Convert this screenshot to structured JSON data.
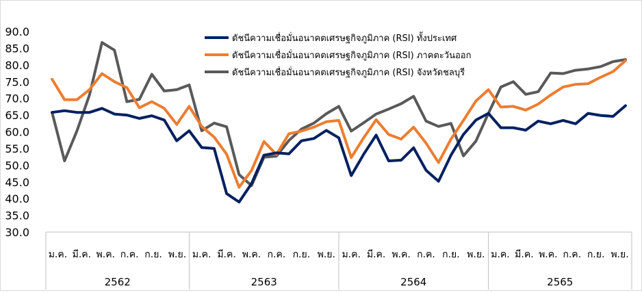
{
  "chart_data": {
    "type": "line",
    "title": "",
    "xlabel": "",
    "ylabel": "",
    "ylim": [
      30,
      90
    ],
    "yticks": [
      "30.0",
      "35.0",
      "40.0",
      "45.0",
      "50.0",
      "55.0",
      "60.0",
      "65.0",
      "70.0",
      "75.0",
      "80.0",
      "85.0",
      "90.0"
    ],
    "grid": false,
    "legend": "top-center",
    "month_labels": [
      "ม.ค.",
      "มี.ค.",
      "พ.ค.",
      "ก.ค.",
      "ก.ย.",
      "พ.ย."
    ],
    "years": [
      "2562",
      "2563",
      "2564",
      "2565"
    ],
    "series": [
      {
        "name": "ดัชนีความเชื่อมั่นอนาคตเศรษฐกิจภูมิภาค (RSI) ทั้งประเทศ",
        "color": "#002060",
        "values": [
          65.8,
          66.3,
          65.8,
          65.8,
          67.0,
          65.3,
          65.0,
          64.0,
          64.8,
          63.5,
          57.3,
          60.3,
          55.3,
          55.0,
          41.5,
          39.0,
          44.5,
          53.0,
          53.7,
          53.4,
          57.3,
          58.0,
          60.4,
          58.2,
          46.9,
          53.3,
          59.0,
          51.3,
          51.5,
          55.2,
          48.5,
          45.2,
          53.0,
          59.2,
          63.5,
          65.5,
          61.2,
          61.2,
          60.5,
          63.2,
          62.4,
          63.4,
          62.4,
          65.5,
          64.9,
          64.6,
          67.8
        ]
      },
      {
        "name": "ดัชนีความเชื่อมั่นอนาคตเศรษฐกิจภูมิภาค (RSI) ภาคตะวันออก",
        "color": "#ED7D31",
        "values": [
          75.7,
          69.6,
          69.6,
          72.6,
          77.4,
          75.0,
          73.2,
          67.2,
          69.0,
          67.0,
          62.2,
          67.6,
          61.6,
          58.4,
          53.3,
          43.4,
          48.4,
          57.1,
          53.2,
          59.4,
          60.2,
          61.4,
          63.0,
          63.4,
          52.3,
          58.2,
          63.6,
          59.2,
          57.8,
          61.4,
          56.6,
          50.8,
          57.8,
          63.4,
          69.2,
          72.6,
          67.4,
          67.6,
          66.5,
          68.3,
          71.0,
          73.4,
          74.2,
          74.4,
          76.3,
          78.0,
          81.3
        ]
      },
      {
        "name": "ดัชนีความเชื่อมั่นอนาคตเศรษฐกิจภูมิภาค (RSI) จังหวัดชลบุรี",
        "color": "#595959",
        "values": [
          65.8,
          51.3,
          60.3,
          71.0,
          86.7,
          84.4,
          69.0,
          69.7,
          77.2,
          72.2,
          72.6,
          74.0,
          60.3,
          62.6,
          61.5,
          47.2,
          43.9,
          52.4,
          52.7,
          57.4,
          60.8,
          62.6,
          65.4,
          67.6,
          60.2,
          62.7,
          65.3,
          66.8,
          68.4,
          70.6,
          63.2,
          61.6,
          62.5,
          52.8,
          57.2,
          65.5,
          73.4,
          75.0,
          71.2,
          72.0,
          77.6,
          77.4,
          78.4,
          78.8,
          79.5,
          81.0,
          81.6
        ]
      }
    ]
  }
}
